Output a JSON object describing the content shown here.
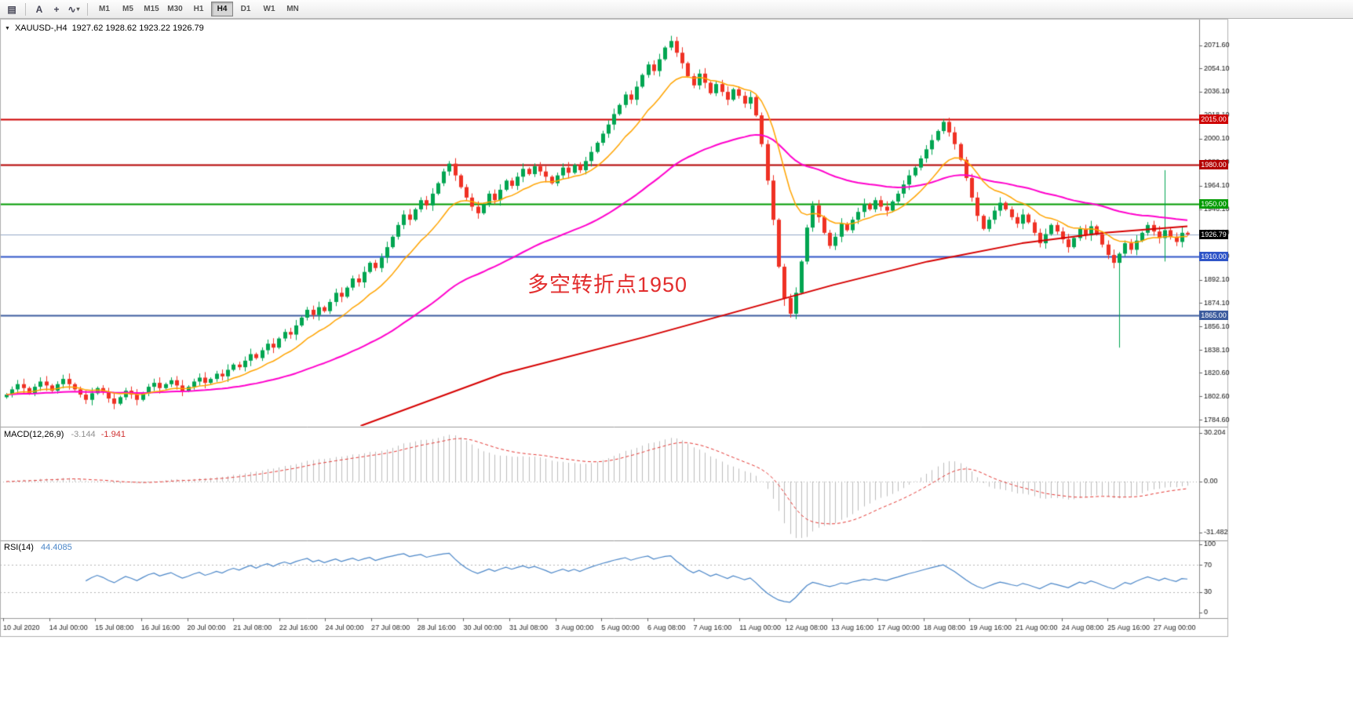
{
  "toolbar": {
    "icons": [
      {
        "name": "chart-grid-icon",
        "glyph": "▤"
      },
      {
        "name": "cursor-tool-icon",
        "glyph": "A"
      },
      {
        "name": "crosshair-tool-icon",
        "glyph": "+"
      },
      {
        "name": "indicator-tool-icon",
        "glyph": "∿"
      }
    ],
    "dropdown_caret": "▾",
    "timeframes": [
      "M1",
      "M5",
      "M15",
      "M30",
      "H1",
      "H4",
      "D1",
      "W1",
      "MN"
    ],
    "active_timeframe": "H4"
  },
  "symbol_panel": {
    "collapse_icon": "▼",
    "symbol": "XAUUSD-,H4",
    "ohlc": "1927.62 1928.62 1923.22 1926.79"
  },
  "annotation": {
    "text": "多空转折点1950",
    "color": "#E22D2D"
  },
  "chart_data": {
    "type": "candlestick",
    "symbol": "XAUUSD-",
    "timeframe": "H4",
    "title": "XAUUSD-,H4 1927.62 1928.62 1923.22 1926.79",
    "price_axis": {
      "min": 1780,
      "max": 2092,
      "ticks": [
        2071.6,
        2054.1,
        2036.1,
        2018.1,
        2000.1,
        1982.1,
        1964.1,
        1946.1,
        1928.1,
        1910.1,
        1892.1,
        1874.1,
        1856.1,
        1838.1,
        1820.6,
        1802.6,
        1784.6
      ]
    },
    "levels": [
      {
        "price": 2015.0,
        "label": "2015.00",
        "color": "#CE0000",
        "width": 2
      },
      {
        "price": 1980.0,
        "label": "1980.00",
        "color": "#B40000",
        "width": 2
      },
      {
        "price": 1950.0,
        "label": "1950.00",
        "color": "#009B00",
        "width": 2
      },
      {
        "price": 1910.0,
        "label": "1910.00",
        "color": "#2F55C8",
        "width": 2
      },
      {
        "price": 1865.0,
        "label": "1865.00",
        "color": "#3D5C9E",
        "width": 2
      }
    ],
    "current_price": {
      "value": 1926.79,
      "label": "1926.79",
      "badge_color": "#000000",
      "line_color": "#93A9C8"
    },
    "candles": {
      "first_open": 1802,
      "up_color": "#00A551",
      "down_color": "#EF3124",
      "closes": [
        1804,
        1808,
        1812,
        1809,
        1805,
        1810,
        1814,
        1811,
        1807,
        1812,
        1816,
        1812,
        1808,
        1804,
        1800,
        1805,
        1809,
        1806,
        1801,
        1797,
        1802,
        1807,
        1804,
        1800,
        1805,
        1810,
        1813,
        1809,
        1812,
        1815,
        1811,
        1807,
        1810,
        1814,
        1817,
        1813,
        1816,
        1820,
        1818,
        1823,
        1827,
        1825,
        1830,
        1835,
        1832,
        1838,
        1843,
        1840,
        1847,
        1852,
        1850,
        1857,
        1863,
        1869,
        1865,
        1871,
        1868,
        1875,
        1882,
        1879,
        1886,
        1893,
        1890,
        1898,
        1905,
        1901,
        1909,
        1917,
        1925,
        1934,
        1942,
        1938,
        1946,
        1953,
        1949,
        1958,
        1966,
        1975,
        1981,
        1972,
        1963,
        1955,
        1948,
        1943,
        1950,
        1958,
        1953,
        1961,
        1968,
        1964,
        1971,
        1977,
        1973,
        1979,
        1975,
        1971,
        1966,
        1972,
        1978,
        1974,
        1980,
        1976,
        1983,
        1990,
        1997,
        2004,
        2011,
        2019,
        2026,
        2034,
        2030,
        2040,
        2049,
        2057,
        2052,
        2061,
        2070,
        2075,
        2066,
        2058,
        2048,
        2041,
        2050,
        2043,
        2035,
        2042,
        2036,
        2030,
        2038,
        2033,
        2027,
        2032,
        2018,
        1996,
        1968,
        1938,
        1902,
        1878,
        1866,
        1882,
        1906,
        1932,
        1949,
        1940,
        1928,
        1918,
        1925,
        1935,
        1930,
        1938,
        1944,
        1950,
        1946,
        1953,
        1948,
        1945,
        1952,
        1958,
        1965,
        1972,
        1978,
        1985,
        1992,
        1999,
        2006,
        2013,
        2005,
        1996,
        1984,
        1970,
        1955,
        1941,
        1931,
        1938,
        1945,
        1951,
        1946,
        1940,
        1935,
        1942,
        1936,
        1928,
        1920,
        1927,
        1934,
        1929,
        1923,
        1917,
        1924,
        1931,
        1926,
        1933,
        1927,
        1919,
        1911,
        1905,
        1912,
        1920,
        1915,
        1922,
        1928,
        1934,
        1929,
        1924,
        1930,
        1925,
        1921,
        1928,
        1926.8
      ],
      "wick_overrides": {
        "78": {
          "high": 1983
        },
        "117": {
          "high": 2079
        },
        "137": {
          "low": 1872
        },
        "138": {
          "low": 1863
        },
        "196": {
          "low": 1840
        },
        "204": {
          "high": 1976,
          "low": 1906
        }
      }
    },
    "moving_averages": {
      "fast": {
        "period": 13,
        "color": "#FFA400"
      },
      "medium": {
        "period": 55,
        "color": "#FF00CC"
      },
      "slow_polyline": {
        "color": "#D60000",
        "points": [
          [
            0.3,
            1780
          ],
          [
            0.42,
            1820
          ],
          [
            0.54,
            1848
          ],
          [
            0.62,
            1868
          ],
          [
            0.7,
            1888
          ],
          [
            0.78,
            1906
          ],
          [
            0.86,
            1920
          ],
          [
            0.93,
            1928
          ],
          [
            1.0,
            1933
          ]
        ]
      }
    },
    "macd": {
      "label": "MACD(12,26,9)",
      "main_value": "-3.144",
      "signal_value": "-1.941",
      "params": [
        12,
        26,
        9
      ],
      "range": [
        -36,
        33
      ],
      "axis_ticks": [
        {
          "value": 30.204,
          "label": "30.204"
        },
        {
          "value": 0,
          "label": "0.00"
        },
        {
          "value": -31.482,
          "label": "-31.482"
        }
      ],
      "hist_color": "#BDBDBD",
      "signal_color": "#E53935"
    },
    "rsi": {
      "label": "RSI(14)",
      "value": "44.4085",
      "period": 14,
      "levels": [
        30,
        70
      ],
      "axis_ticks": [
        100,
        70,
        30,
        0
      ],
      "line_color": "#4A86C8"
    },
    "time_axis": {
      "labels": [
        "10 Jul 2020",
        "14 Jul 00:00",
        "15 Jul 08:00",
        "16 Jul 16:00",
        "20 Jul 00:00",
        "21 Jul 08:00",
        "22 Jul 16:00",
        "24 Jul 00:00",
        "27 Jul 08:00",
        "28 Jul 16:00",
        "30 Jul 00:00",
        "31 Jul 08:00",
        "3 Aug 00:00",
        "5 Aug 00:00",
        "6 Aug 08:00",
        "7 Aug 16:00",
        "11 Aug 00:00",
        "12 Aug 08:00",
        "13 Aug 16:00",
        "17 Aug 00:00",
        "18 Aug 08:00",
        "19 Aug 16:00",
        "21 Aug 00:00",
        "24 Aug 08:00",
        "25 Aug 16:00",
        "27 Aug 00:00"
      ]
    }
  }
}
